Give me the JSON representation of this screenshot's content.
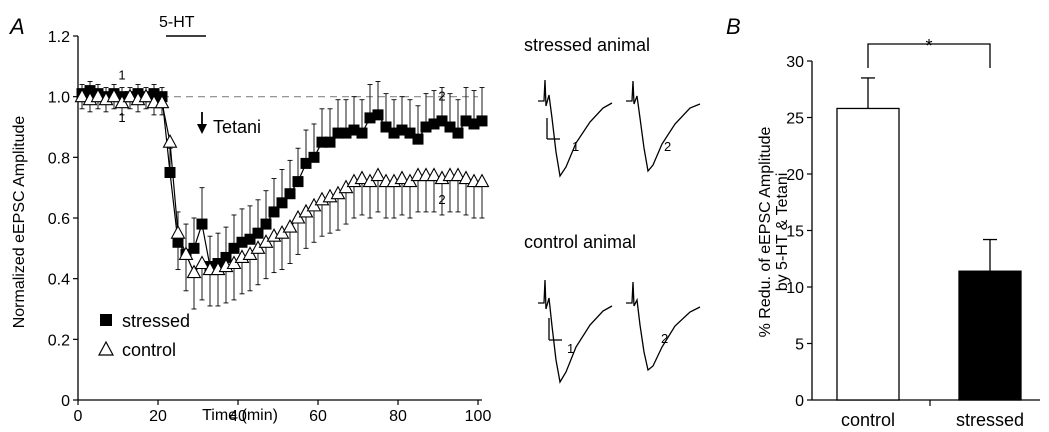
{
  "panels": {
    "A": "A",
    "B": "B"
  },
  "chart_data": [
    {
      "type": "scatter",
      "xlabel": "Time (min)",
      "ylabel": "Normalized eEPSC Amplitude",
      "xlim": [
        0,
        100
      ],
      "ylim": [
        0,
        1.2
      ],
      "xticks": [
        "0",
        "20",
        "40",
        "60",
        "80",
        "100"
      ],
      "yticks": [
        "0",
        "0.2",
        "0.4",
        "0.6",
        "0.8",
        "1.0",
        "1.2"
      ],
      "baseline": 1.0,
      "drug_bar": {
        "label": "5-HT",
        "from": 22,
        "to": 32
      },
      "tetani": {
        "label": "Tetani",
        "x": 31
      },
      "point_labels": [
        {
          "text": "1",
          "x": 11,
          "y": 1.07
        },
        {
          "text": "1",
          "x": 11,
          "y": 0.93
        },
        {
          "text": "2",
          "x": 91,
          "y": 1.0
        },
        {
          "text": "2",
          "x": 91,
          "y": 0.66
        }
      ],
      "legend": [
        "stressed",
        "control"
      ],
      "series": [
        {
          "name": "stressed",
          "marker": "filled-square",
          "x": [
            1,
            3,
            5,
            7,
            9,
            11,
            13,
            15,
            17,
            19,
            21,
            23,
            25,
            27,
            29,
            31,
            33,
            35,
            37,
            39,
            41,
            43,
            45,
            47,
            49,
            51,
            53,
            55,
            57,
            59,
            61,
            63,
            65,
            67,
            69,
            71,
            73,
            75,
            77,
            79,
            81,
            83,
            85,
            87,
            89,
            91,
            93,
            95,
            97,
            99,
            101
          ],
          "values": [
            1.01,
            1.02,
            1.01,
            1.0,
            1.01,
            1.0,
            1.0,
            1.01,
            1.0,
            1.01,
            1.0,
            0.75,
            0.52,
            0.48,
            0.5,
            0.58,
            0.44,
            0.45,
            0.47,
            0.5,
            0.52,
            0.53,
            0.55,
            0.58,
            0.62,
            0.65,
            0.68,
            0.72,
            0.78,
            0.8,
            0.85,
            0.85,
            0.88,
            0.88,
            0.89,
            0.88,
            0.93,
            0.94,
            0.9,
            0.88,
            0.89,
            0.88,
            0.86,
            0.9,
            0.91,
            0.92,
            0.9,
            0.88,
            0.92,
            0.91,
            0.92
          ],
          "errors": [
            0.03,
            0.03,
            0.03,
            0.03,
            0.03,
            0.03,
            0.03,
            0.03,
            0.03,
            0.03,
            0.03,
            0.08,
            0.1,
            0.1,
            0.1,
            0.12,
            0.1,
            0.1,
            0.1,
            0.11,
            0.11,
            0.11,
            0.11,
            0.11,
            0.11,
            0.11,
            0.11,
            0.11,
            0.11,
            0.11,
            0.11,
            0.11,
            0.11,
            0.11,
            0.11,
            0.11,
            0.11,
            0.11,
            0.11,
            0.11,
            0.11,
            0.11,
            0.11,
            0.11,
            0.11,
            0.11,
            0.11,
            0.11,
            0.11,
            0.11,
            0.11
          ]
        },
        {
          "name": "control",
          "marker": "open-triangle",
          "x": [
            1,
            3,
            5,
            7,
            9,
            11,
            13,
            15,
            17,
            19,
            21,
            23,
            25,
            27,
            29,
            31,
            33,
            35,
            37,
            39,
            41,
            43,
            45,
            47,
            49,
            51,
            53,
            55,
            57,
            59,
            61,
            63,
            65,
            67,
            69,
            71,
            73,
            75,
            77,
            79,
            81,
            83,
            85,
            87,
            89,
            91,
            93,
            95,
            97,
            99,
            101
          ],
          "values": [
            1.0,
            0.99,
            1.0,
            0.99,
            1.0,
            0.98,
            1.0,
            0.99,
            1.0,
            0.98,
            0.98,
            0.85,
            0.55,
            0.48,
            0.42,
            0.45,
            0.43,
            0.43,
            0.44,
            0.45,
            0.47,
            0.48,
            0.5,
            0.52,
            0.54,
            0.55,
            0.57,
            0.6,
            0.62,
            0.64,
            0.66,
            0.67,
            0.68,
            0.7,
            0.72,
            0.73,
            0.72,
            0.74,
            0.72,
            0.72,
            0.73,
            0.72,
            0.74,
            0.74,
            0.74,
            0.73,
            0.74,
            0.74,
            0.73,
            0.72,
            0.72
          ],
          "errors": [
            0.04,
            0.04,
            0.04,
            0.04,
            0.04,
            0.04,
            0.04,
            0.04,
            0.04,
            0.04,
            0.04,
            0.1,
            0.12,
            0.12,
            0.12,
            0.12,
            0.12,
            0.12,
            0.12,
            0.12,
            0.12,
            0.12,
            0.12,
            0.12,
            0.12,
            0.12,
            0.12,
            0.12,
            0.12,
            0.12,
            0.12,
            0.12,
            0.12,
            0.12,
            0.12,
            0.12,
            0.12,
            0.12,
            0.12,
            0.12,
            0.12,
            0.12,
            0.12,
            0.12,
            0.12,
            0.12,
            0.12,
            0.12,
            0.12,
            0.12,
            0.12
          ]
        }
      ]
    },
    {
      "type": "bar",
      "ylabel": "% Redu. of eEPSC Amplitude by 5-HT & Tetani",
      "ylabel_lines": [
        "% Redu. of eEPSC Amplitude",
        "by 5-HT & Tetani"
      ],
      "ylim": [
        0,
        30
      ],
      "yticks": [
        "0",
        "5",
        "10",
        "15",
        "20",
        "25",
        "30"
      ],
      "categories": [
        "control",
        "stressed"
      ],
      "values": [
        25.8,
        11.4
      ],
      "errors": [
        2.7,
        2.8
      ],
      "fills": [
        "#ffffff",
        "#000000"
      ],
      "significance": "*"
    }
  ],
  "traces": {
    "stressed_title": "stressed animal",
    "control_title": "control animal",
    "labels": [
      "1",
      "2",
      "1",
      "2"
    ]
  }
}
